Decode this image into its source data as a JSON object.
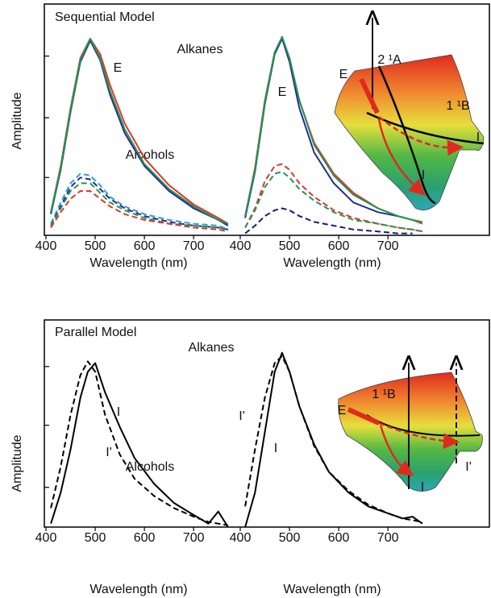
{
  "chart_data": [
    {
      "type": "line",
      "title": "Sequential Model",
      "ylabel": "Amplitude",
      "xlabel": "Wavelength (nm)",
      "annotations": [
        "E",
        "Alcohols"
      ],
      "x": [
        410,
        430,
        450,
        470,
        490,
        510,
        530,
        560,
        600,
        650,
        700,
        750,
        770
      ],
      "xlim": [
        400,
        780
      ],
      "xticks": [
        400,
        500,
        600,
        700
      ],
      "ylim": [
        0,
        1.2
      ],
      "yticks": [
        0.3,
        0.61,
        0.93
      ],
      "series": [
        {
          "color": "#e8302a",
          "dash": false,
          "values": [
            0.12,
            0.36,
            0.66,
            0.92,
            1.02,
            0.94,
            0.78,
            0.58,
            0.4,
            0.26,
            0.16,
            0.09,
            0.06
          ]
        },
        {
          "color": "#2a2a9a",
          "dash": false,
          "values": [
            0.11,
            0.34,
            0.64,
            0.9,
            1.01,
            0.91,
            0.73,
            0.53,
            0.36,
            0.23,
            0.14,
            0.08,
            0.05
          ]
        },
        {
          "color": "#1a9a50",
          "dash": false,
          "values": [
            0.12,
            0.35,
            0.65,
            0.91,
            1.02,
            0.92,
            0.75,
            0.55,
            0.37,
            0.24,
            0.15,
            0.08,
            0.06
          ]
        },
        {
          "color": "#2aa0d8",
          "dash": true,
          "values": [
            0.06,
            0.17,
            0.27,
            0.32,
            0.31,
            0.26,
            0.2,
            0.15,
            0.11,
            0.08,
            0.06,
            0.05,
            0.03
          ]
        },
        {
          "color": "#2a2a9a",
          "dash": true,
          "values": [
            0.05,
            0.15,
            0.25,
            0.3,
            0.29,
            0.24,
            0.19,
            0.14,
            0.1,
            0.07,
            0.05,
            0.04,
            0.03
          ]
        },
        {
          "color": "#1a9a50",
          "dash": true,
          "values": [
            0.05,
            0.14,
            0.23,
            0.27,
            0.27,
            0.22,
            0.17,
            0.13,
            0.09,
            0.06,
            0.05,
            0.04,
            0.03
          ]
        },
        {
          "color": "#e8302a",
          "dash": true,
          "values": [
            0.04,
            0.12,
            0.19,
            0.23,
            0.23,
            0.19,
            0.15,
            0.11,
            0.08,
            0.06,
            0.04,
            0.03,
            0.02
          ]
        }
      ]
    },
    {
      "type": "line",
      "xlabel": "Wavelength (nm)",
      "annotations": [
        "Alkanes",
        "E",
        "E",
        "2 ¹A",
        "1 ¹B",
        "I",
        "I"
      ],
      "x": [
        410,
        430,
        450,
        470,
        485,
        500,
        520,
        550,
        590,
        630,
        680,
        720,
        750,
        770
      ],
      "xlim": [
        400,
        780
      ],
      "xticks": [
        400,
        500,
        600,
        700
      ],
      "ylim": [
        0,
        1.2
      ],
      "series": [
        {
          "color": "#e8302a",
          "dash": false,
          "values": [
            0.1,
            0.35,
            0.7,
            0.95,
            1.02,
            0.92,
            0.7,
            0.48,
            0.32,
            0.22,
            0.14,
            0.1,
            0.08,
            0.06
          ]
        },
        {
          "color": "#2a2a9a",
          "dash": false,
          "values": [
            0.09,
            0.33,
            0.68,
            0.94,
            1.02,
            0.9,
            0.66,
            0.43,
            0.27,
            0.17,
            0.12,
            0.1,
            null,
            null
          ]
        },
        {
          "color": "#1a9a50",
          "dash": false,
          "values": [
            0.1,
            0.34,
            0.69,
            0.95,
            1.03,
            0.92,
            0.7,
            0.47,
            0.31,
            0.21,
            0.14,
            0.1,
            0.08,
            0.07
          ]
        },
        {
          "color": "#e8302a",
          "dash": true,
          "values": [
            0.04,
            0.14,
            0.28,
            0.36,
            0.37,
            0.34,
            0.27,
            0.2,
            0.13,
            0.09,
            0.06,
            0.04,
            0.03,
            0.02
          ]
        },
        {
          "color": "#1a9a50",
          "dash": true,
          "values": [
            0.04,
            0.13,
            0.25,
            0.32,
            0.33,
            0.3,
            0.24,
            0.18,
            0.12,
            0.08,
            0.06,
            0.04,
            0.03,
            0.02
          ]
        },
        {
          "color": "#1a1a80",
          "dash": true,
          "values": [
            0.01,
            0.05,
            0.1,
            0.13,
            0.14,
            0.13,
            0.1,
            0.07,
            0.05,
            0.03,
            0.02,
            0.01,
            0.01,
            null
          ]
        }
      ]
    },
    {
      "type": "line",
      "title": "Parallel Model",
      "ylabel": "Amplitude",
      "xlabel": "Wavelength (nm)",
      "annotations": [
        "I",
        "I'",
        "Alcohols"
      ],
      "x": [
        410,
        430,
        450,
        470,
        485,
        500,
        520,
        550,
        580,
        620,
        660,
        700,
        730,
        750,
        770
      ],
      "xlim": [
        400,
        780
      ],
      "xticks": [
        400,
        500,
        600,
        700
      ],
      "ylim": [
        0,
        1.2
      ],
      "yticks": [
        0.23,
        0.59,
        0.93
      ],
      "series": [
        {
          "color": "#000000",
          "dash": false,
          "values": [
            0.02,
            0.2,
            0.45,
            0.75,
            0.9,
            0.95,
            0.78,
            0.58,
            0.4,
            0.25,
            0.14,
            0.07,
            0.02,
            0.09,
            0.0
          ]
        },
        {
          "color": "#000000",
          "dash": true,
          "values": [
            0.11,
            0.35,
            0.65,
            0.88,
            0.96,
            0.9,
            0.65,
            0.42,
            0.28,
            0.18,
            0.11,
            0.06,
            0.03,
            0.02,
            0.01
          ]
        }
      ]
    },
    {
      "type": "line",
      "xlabel": "Wavelength (nm)",
      "annotations": [
        "Alkanes",
        "I'",
        "I",
        "E",
        "1 ¹B",
        "I",
        "I'"
      ],
      "x": [
        410,
        430,
        450,
        470,
        485,
        500,
        520,
        550,
        580,
        620,
        660,
        700,
        730,
        750,
        770
      ],
      "xlim": [
        400,
        780
      ],
      "xticks": [
        400,
        500,
        600,
        700
      ],
      "ylim": [
        0,
        1.2
      ],
      "series": [
        {
          "color": "#000000",
          "dash": false,
          "values": [
            0.0,
            0.2,
            0.55,
            0.9,
            1.01,
            0.9,
            0.7,
            0.48,
            0.32,
            0.2,
            0.12,
            0.08,
            0.05,
            0.06,
            0.02
          ]
        },
        {
          "color": "#000000",
          "dash": true,
          "values": [
            0.12,
            0.45,
            0.75,
            0.95,
            0.99,
            0.9,
            0.7,
            0.47,
            0.32,
            0.21,
            0.13,
            0.08,
            0.05,
            0.04,
            0.03
          ]
        }
      ]
    }
  ]
}
